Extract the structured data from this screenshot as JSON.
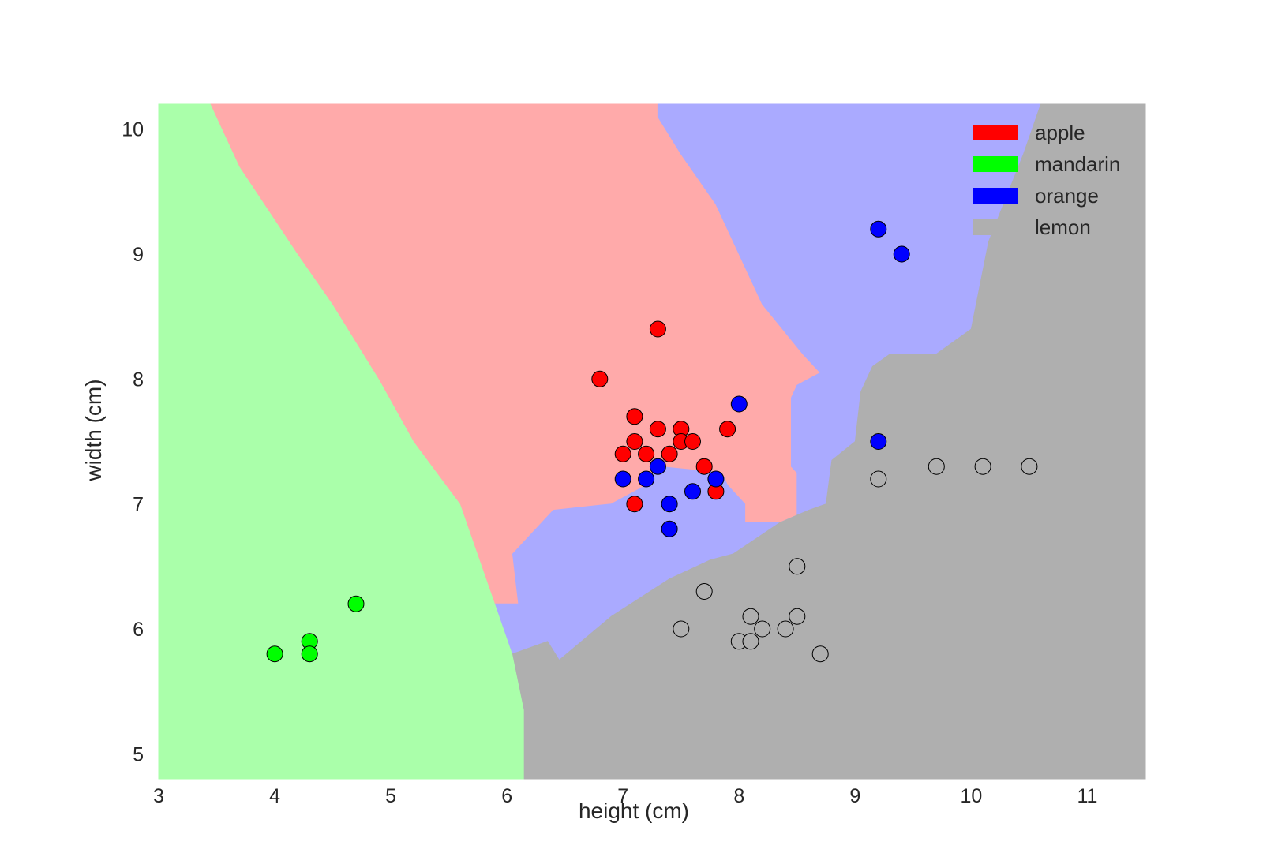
{
  "chart_data": {
    "type": "scatter",
    "title": "",
    "xlabel": "height (cm)",
    "ylabel": "width (cm)",
    "xlim": [
      3.0,
      11.5
    ],
    "ylim": [
      4.8,
      10.2
    ],
    "xticks": [
      "3",
      "4",
      "5",
      "6",
      "7",
      "8",
      "9",
      "10",
      "11"
    ],
    "yticks": [
      "5",
      "6",
      "7",
      "8",
      "9",
      "10"
    ],
    "grid": false,
    "legend_position": "top-right",
    "background": "decision regions",
    "series": [
      {
        "name": "apple",
        "color": "#ff0000",
        "region_color": "#ffaaaa",
        "points": [
          [
            7.3,
            8.4
          ],
          [
            6.8,
            8.0
          ],
          [
            7.1,
            7.7
          ],
          [
            7.3,
            7.6
          ],
          [
            7.5,
            7.6
          ],
          [
            7.9,
            7.6
          ],
          [
            7.1,
            7.5
          ],
          [
            7.5,
            7.5
          ],
          [
            7.6,
            7.5
          ],
          [
            7.0,
            7.4
          ],
          [
            7.2,
            7.4
          ],
          [
            7.4,
            7.4
          ],
          [
            7.7,
            7.3
          ],
          [
            7.8,
            7.1
          ],
          [
            7.1,
            7.0
          ]
        ]
      },
      {
        "name": "mandarin",
        "color": "#00ff00",
        "region_color": "#aaffaa",
        "points": [
          [
            4.7,
            6.2
          ],
          [
            4.3,
            5.9
          ],
          [
            4.0,
            5.8
          ],
          [
            4.3,
            5.8
          ]
        ]
      },
      {
        "name": "orange",
        "color": "#0000ff",
        "region_color": "#aaaaff",
        "points": [
          [
            9.2,
            9.2
          ],
          [
            9.4,
            9.0
          ],
          [
            8.0,
            7.8
          ],
          [
            9.2,
            7.5
          ],
          [
            7.3,
            7.3
          ],
          [
            7.0,
            7.2
          ],
          [
            7.2,
            7.2
          ],
          [
            7.8,
            7.2
          ],
          [
            7.6,
            7.1
          ],
          [
            7.4,
            7.0
          ],
          [
            7.4,
            6.8
          ]
        ]
      },
      {
        "name": "lemon",
        "color": "#afafaf",
        "region_color": "#afafaf",
        "points": [
          [
            9.7,
            7.3
          ],
          [
            10.1,
            7.3
          ],
          [
            10.5,
            7.3
          ],
          [
            9.2,
            7.2
          ],
          [
            8.5,
            6.5
          ],
          [
            7.7,
            6.3
          ],
          [
            8.1,
            6.1
          ],
          [
            8.5,
            6.1
          ],
          [
            7.5,
            6.0
          ],
          [
            8.2,
            6.0
          ],
          [
            8.4,
            6.0
          ],
          [
            8.0,
            5.9
          ],
          [
            8.1,
            5.9
          ],
          [
            8.7,
            5.8
          ]
        ]
      }
    ],
    "regions": [
      {
        "class": "mandarin",
        "polygon": [
          [
            3.0,
            10.2
          ],
          [
            3.45,
            10.2
          ],
          [
            3.7,
            9.7
          ],
          [
            4.2,
            9.0
          ],
          [
            4.5,
            8.6
          ],
          [
            4.9,
            8.0
          ],
          [
            5.2,
            7.5
          ],
          [
            5.6,
            7.0
          ],
          [
            5.9,
            6.2
          ],
          [
            6.05,
            5.8
          ],
          [
            6.15,
            5.35
          ],
          [
            6.15,
            4.8
          ],
          [
            3.0,
            4.8
          ]
        ]
      },
      {
        "class": "apple",
        "polygon": [
          [
            3.45,
            10.2
          ],
          [
            7.3,
            10.2
          ],
          [
            7.3,
            10.1
          ],
          [
            7.5,
            9.8
          ],
          [
            7.8,
            9.4
          ],
          [
            8.2,
            8.6
          ],
          [
            8.55,
            8.2
          ],
          [
            8.7,
            8.05
          ],
          [
            8.5,
            7.95
          ],
          [
            8.45,
            7.85
          ],
          [
            8.45,
            7.3
          ],
          [
            8.5,
            7.25
          ],
          [
            8.5,
            6.85
          ],
          [
            8.25,
            6.85
          ],
          [
            8.05,
            6.85
          ],
          [
            8.05,
            7.0
          ],
          [
            7.9,
            7.15
          ],
          [
            7.85,
            7.25
          ],
          [
            7.3,
            7.3
          ],
          [
            7.2,
            7.15
          ],
          [
            6.9,
            7.0
          ],
          [
            6.4,
            6.95
          ],
          [
            6.05,
            6.6
          ],
          [
            6.1,
            6.2
          ],
          [
            5.9,
            6.2
          ],
          [
            5.6,
            7.0
          ],
          [
            5.2,
            7.5
          ],
          [
            4.9,
            8.0
          ],
          [
            4.5,
            8.6
          ],
          [
            4.2,
            9.0
          ],
          [
            3.7,
            9.7
          ]
        ]
      },
      {
        "class": "orange",
        "polygon": [
          [
            7.3,
            10.2
          ],
          [
            10.6,
            10.2
          ],
          [
            10.45,
            9.8
          ],
          [
            10.15,
            9.1
          ],
          [
            10.0,
            8.4
          ],
          [
            9.7,
            8.2
          ],
          [
            9.3,
            8.2
          ],
          [
            9.15,
            8.1
          ],
          [
            9.05,
            7.9
          ],
          [
            9.0,
            7.5
          ],
          [
            8.8,
            7.35
          ],
          [
            8.75,
            7.0
          ],
          [
            8.6,
            6.95
          ],
          [
            8.35,
            6.85
          ],
          [
            7.95,
            6.6
          ],
          [
            7.75,
            6.55
          ],
          [
            7.4,
            6.4
          ],
          [
            6.9,
            6.1
          ],
          [
            6.45,
            5.75
          ],
          [
            6.35,
            5.9
          ],
          [
            6.05,
            5.8
          ],
          [
            5.9,
            6.2
          ],
          [
            6.1,
            6.2
          ],
          [
            6.05,
            6.6
          ],
          [
            6.4,
            6.95
          ],
          [
            6.9,
            7.0
          ],
          [
            7.2,
            7.15
          ],
          [
            7.3,
            7.3
          ],
          [
            7.85,
            7.25
          ],
          [
            7.9,
            7.15
          ],
          [
            8.05,
            7.0
          ],
          [
            8.05,
            6.85
          ],
          [
            8.5,
            6.85
          ],
          [
            8.5,
            7.25
          ],
          [
            8.45,
            7.3
          ],
          [
            8.45,
            7.85
          ],
          [
            8.5,
            7.95
          ],
          [
            8.7,
            8.05
          ],
          [
            8.55,
            8.2
          ],
          [
            8.2,
            8.6
          ],
          [
            7.8,
            9.4
          ],
          [
            7.5,
            9.8
          ],
          [
            7.3,
            10.1
          ]
        ]
      },
      {
        "class": "lemon",
        "polygon": [
          [
            10.6,
            10.2
          ],
          [
            11.5,
            10.2
          ],
          [
            11.5,
            4.8
          ],
          [
            6.15,
            4.8
          ],
          [
            6.15,
            5.35
          ],
          [
            6.05,
            5.8
          ],
          [
            6.35,
            5.9
          ],
          [
            6.45,
            5.75
          ],
          [
            6.9,
            6.1
          ],
          [
            7.4,
            6.4
          ],
          [
            7.75,
            6.55
          ],
          [
            7.95,
            6.6
          ],
          [
            8.35,
            6.85
          ],
          [
            8.6,
            6.95
          ],
          [
            8.75,
            7.0
          ],
          [
            8.8,
            7.35
          ],
          [
            9.0,
            7.5
          ],
          [
            9.05,
            7.9
          ],
          [
            9.15,
            8.1
          ],
          [
            9.3,
            8.2
          ],
          [
            9.7,
            8.2
          ],
          [
            10.0,
            8.4
          ],
          [
            10.15,
            9.1
          ],
          [
            10.45,
            9.8
          ]
        ]
      }
    ]
  }
}
